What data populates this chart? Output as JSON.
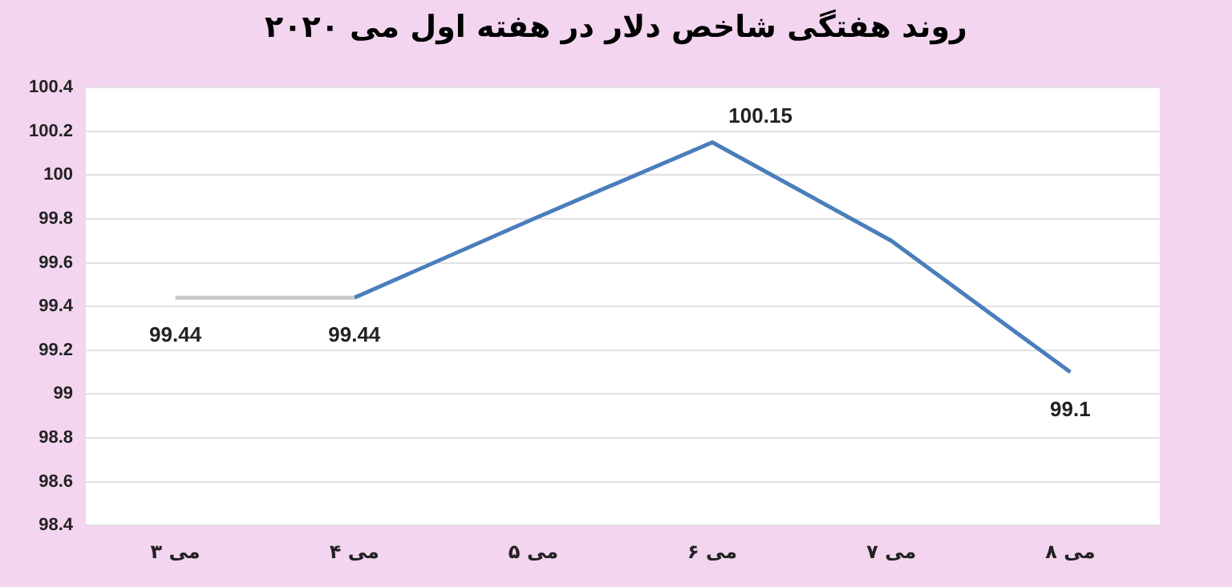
{
  "chart_data": {
    "type": "line",
    "title": "روند هفتگی شاخص دلار در هفته اول می ۲۰۲۰",
    "categories": [
      "۳ می",
      "۴ می",
      "۵ می",
      "۶ می",
      "۷ می",
      "۸ می"
    ],
    "series": [
      {
        "color": "#c8c8c8",
        "values": [
          99.44,
          99.44,
          null,
          null,
          null,
          null
        ],
        "value_labels": [
          "99.44",
          null,
          null,
          null,
          null,
          null
        ]
      },
      {
        "color": "#4a7ebb",
        "values": [
          null,
          99.44,
          99.8,
          100.15,
          99.7,
          99.1
        ],
        "value_labels": [
          null,
          "99.44",
          null,
          "100.15",
          null,
          "99.1"
        ]
      }
    ],
    "ylim": [
      98.4,
      100.4
    ],
    "yticks": [
      98.4,
      98.6,
      98.8,
      99,
      99.2,
      99.4,
      99.6,
      99.8,
      100,
      100.2,
      100.4
    ],
    "grid": "y",
    "legend": false,
    "marker": "none",
    "line_style": "solid"
  }
}
